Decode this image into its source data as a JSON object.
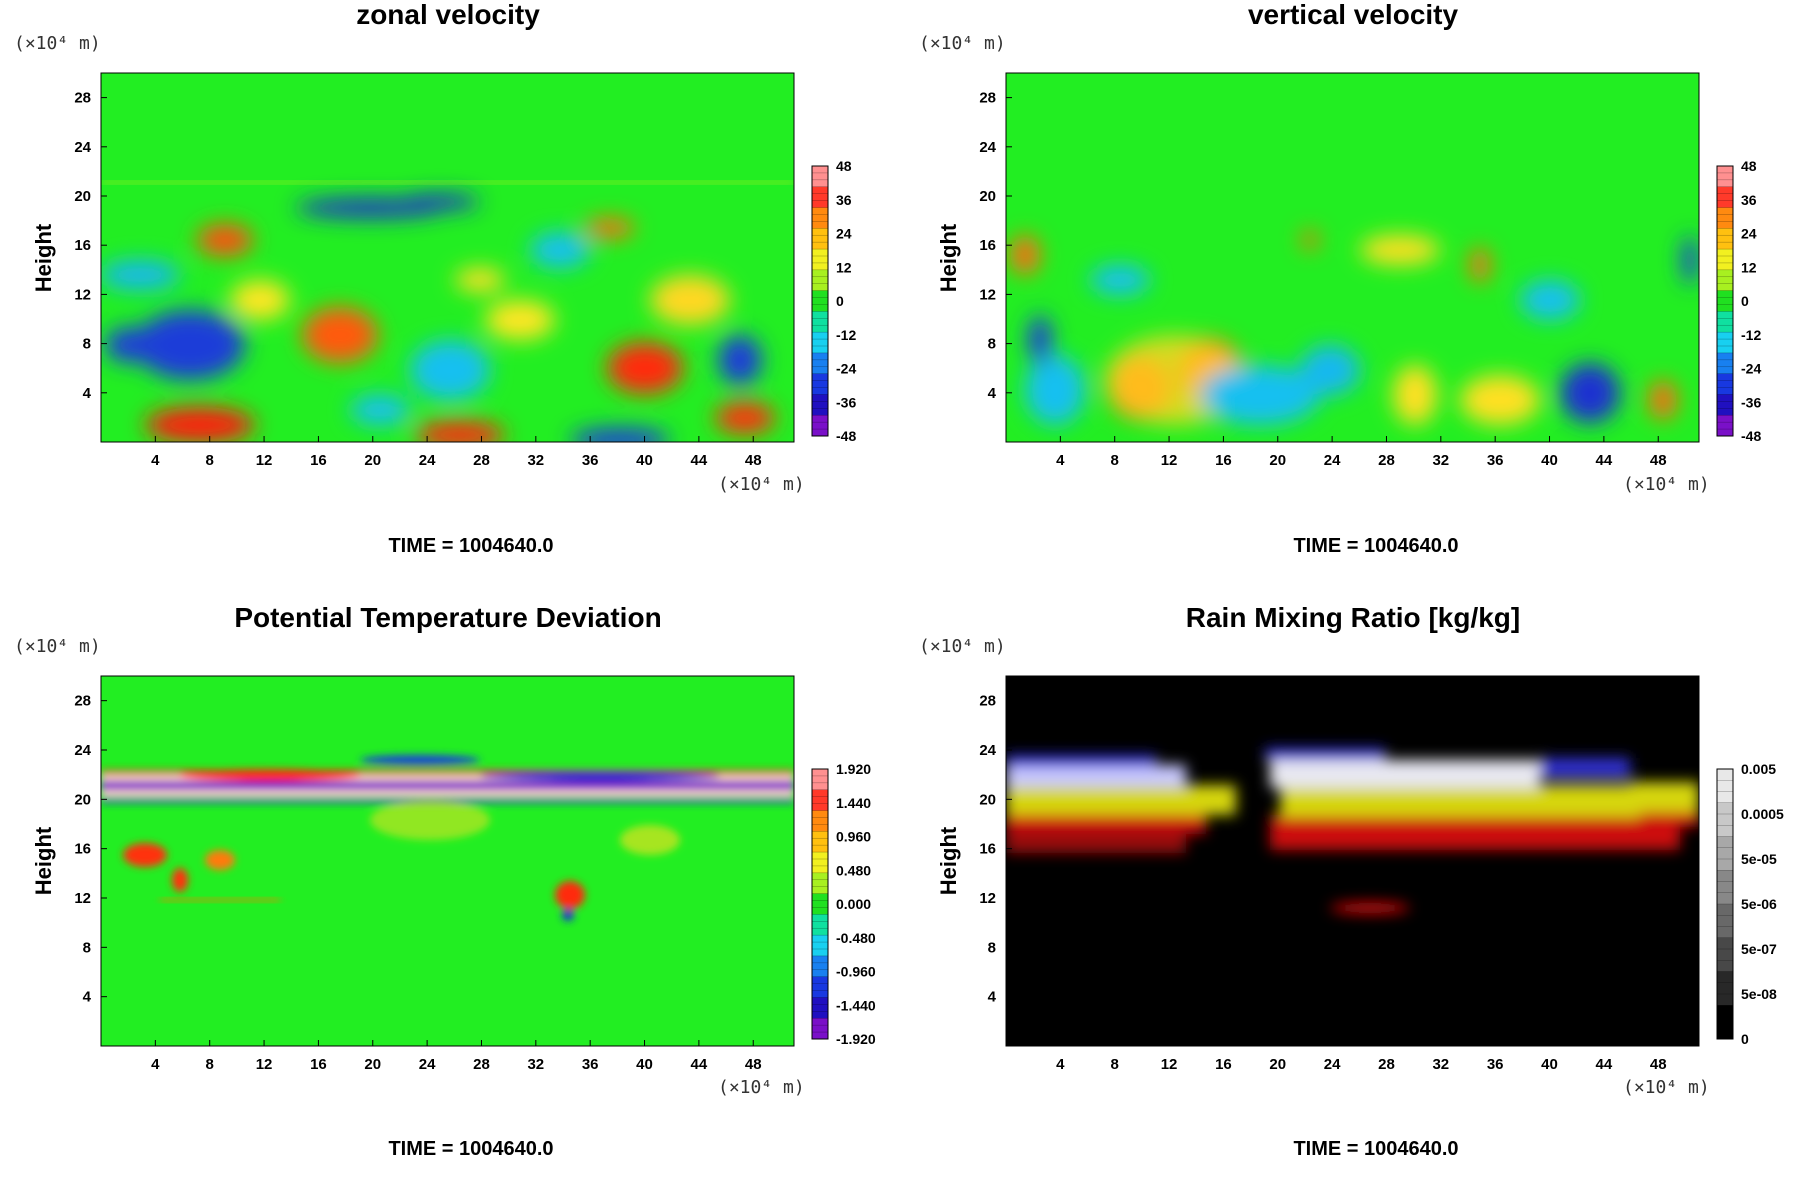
{
  "chart_data": [
    {
      "type": "heatmap",
      "title": "zonal velocity",
      "ylabel": "Height",
      "x_unit": "(×10⁴ m)",
      "y_unit": "(×10⁴ m)",
      "x_ticks": [
        4,
        8,
        12,
        16,
        20,
        24,
        28,
        32,
        36,
        40,
        44,
        48
      ],
      "y_ticks": [
        4,
        8,
        12,
        16,
        20,
        24,
        28
      ],
      "xlim": [
        0,
        51
      ],
      "ylim": [
        0,
        30
      ],
      "colorbar_labels": [
        "48",
        "36",
        "24",
        "12",
        "0",
        "-12",
        "-24",
        "-36",
        "-48"
      ],
      "colormap": "rainbow",
      "footer": "TIME = 1004640.0"
    },
    {
      "type": "heatmap",
      "title": "vertical velocity",
      "ylabel": "Height",
      "x_unit": "(×10⁴ m)",
      "y_unit": "(×10⁴ m)",
      "x_ticks": [
        4,
        8,
        12,
        16,
        20,
        24,
        28,
        32,
        36,
        40,
        44,
        48
      ],
      "y_ticks": [
        4,
        8,
        12,
        16,
        20,
        24,
        28
      ],
      "xlim": [
        0,
        51
      ],
      "ylim": [
        0,
        30
      ],
      "colorbar_labels": [
        "48",
        "36",
        "24",
        "12",
        "0",
        "-12",
        "-24",
        "-36",
        "-48"
      ],
      "colormap": "rainbow",
      "footer": "TIME = 1004640.0"
    },
    {
      "type": "heatmap",
      "title": "Potential Temperature Deviation",
      "ylabel": "Height",
      "x_unit": "(×10⁴ m)",
      "y_unit": "(×10⁴ m)",
      "x_ticks": [
        4,
        8,
        12,
        16,
        20,
        24,
        28,
        32,
        36,
        40,
        44,
        48
      ],
      "y_ticks": [
        4,
        8,
        12,
        16,
        20,
        24,
        28
      ],
      "xlim": [
        0,
        51
      ],
      "ylim": [
        0,
        30
      ],
      "colorbar_labels": [
        "1.920",
        "1.440",
        "0.960",
        "0.480",
        "0.000",
        "-0.480",
        "-0.960",
        "-1.440",
        "-1.920"
      ],
      "colormap": "rainbow",
      "footer": "TIME = 1004640.0"
    },
    {
      "type": "heatmap",
      "title": "Rain Mixing Ratio [kg/kg]",
      "ylabel": "Height",
      "x_unit": "(×10⁴ m)",
      "y_unit": "(×10⁴ m)",
      "x_ticks": [
        4,
        8,
        12,
        16,
        20,
        24,
        28,
        32,
        36,
        40,
        44,
        48
      ],
      "y_ticks": [
        4,
        8,
        12,
        16,
        20,
        24,
        28
      ],
      "xlim": [
        0,
        51
      ],
      "ylim": [
        0,
        30
      ],
      "colorbar_labels": [
        "0.005",
        "0.0005",
        "5e-05",
        "5e-06",
        "5e-07",
        "5e-08",
        "0"
      ],
      "colormap": "grayscale",
      "footer": "TIME = 1004640.0"
    }
  ]
}
